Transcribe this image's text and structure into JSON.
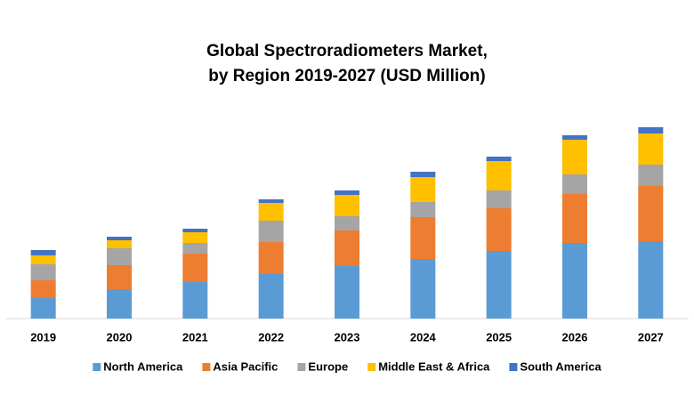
{
  "chart_data": {
    "type": "stacked-bar",
    "title": [
      "Global Spectroradiometers Market,",
      "by Region 2019-2027 (USD Million)"
    ],
    "categories": [
      "2019",
      "2020",
      "2021",
      "2022",
      "2023",
      "2024",
      "2025",
      "2026",
      "2027"
    ],
    "series": [
      {
        "name": "North America",
        "color": "#5b9bd5",
        "values": [
          23,
          33,
          41,
          50,
          59,
          67,
          76,
          85,
          87
        ]
      },
      {
        "name": "Asia Pacific",
        "color": "#ed7d31",
        "values": [
          20,
          27,
          32,
          36,
          40,
          47,
          48,
          55,
          62
        ]
      },
      {
        "name": "Europe",
        "color": "#a5a5a5",
        "values": [
          18,
          19,
          12,
          24,
          16,
          17,
          20,
          22,
          24
        ]
      },
      {
        "name": "Middle East & Africa",
        "color": "#ffc000",
        "values": [
          10,
          9,
          12,
          20,
          24,
          28,
          33,
          39,
          35
        ]
      },
      {
        "name": "South America",
        "color": "#4472c4",
        "values": [
          6,
          4,
          4,
          4,
          5,
          6,
          5,
          5,
          7
        ]
      }
    ],
    "legend": "bottom"
  }
}
